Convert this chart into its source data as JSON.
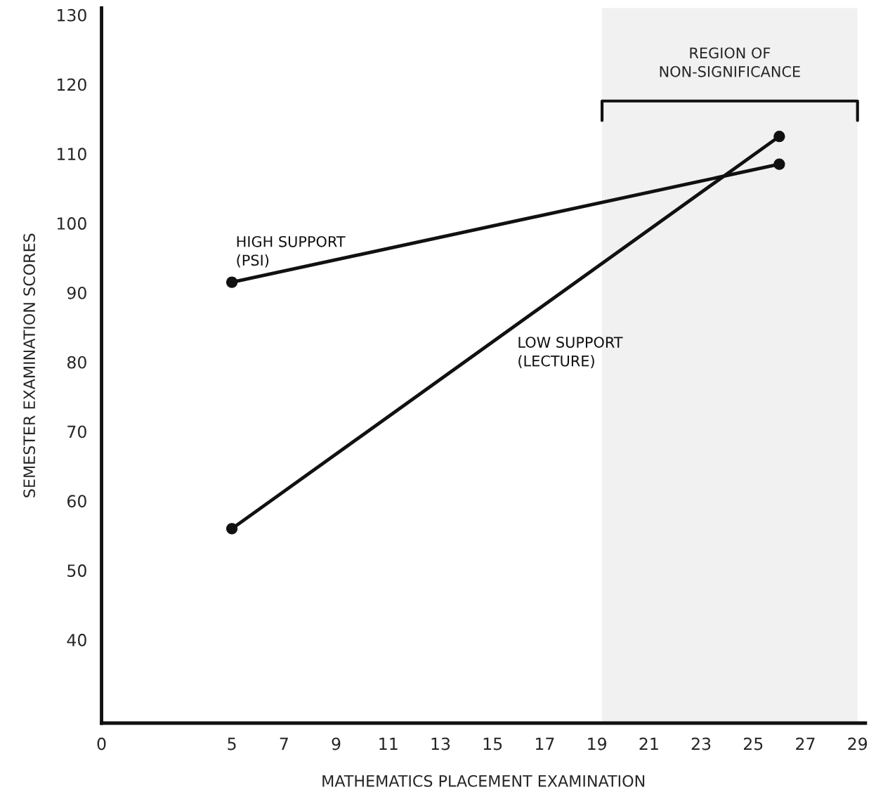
{
  "chart_data": {
    "type": "line",
    "xlabel": "MATHEMATICS PLACEMENT EXAMINATION",
    "ylabel": "SEMESTER EXAMINATION SCORES",
    "x": [
      5,
      26
    ],
    "series": [
      {
        "name": "HIGH SUPPORT\n(PSI)",
        "color": "#111111",
        "values": [
          91.5,
          108.5
        ]
      },
      {
        "name": "LOW SUPPORT\n(LECTURE)",
        "color": "#111111",
        "values": [
          56,
          112.5
        ]
      }
    ],
    "xlim": [
      0,
      29.3
    ],
    "xticks": [
      0,
      5,
      7,
      9,
      11,
      13,
      15,
      17,
      19,
      21,
      23,
      25,
      27,
      29
    ],
    "ylim": [
      28,
      131
    ],
    "yticks": [
      40,
      50,
      60,
      70,
      80,
      90,
      100,
      110,
      120,
      130
    ],
    "bands": [
      {
        "axis": "x",
        "from": 19.2,
        "to": 29,
        "label": "REGION OF\nNON-SIGNIFICANCE"
      }
    ],
    "marker": "circle",
    "line_style": "solid",
    "grid": false,
    "legend": false
  }
}
